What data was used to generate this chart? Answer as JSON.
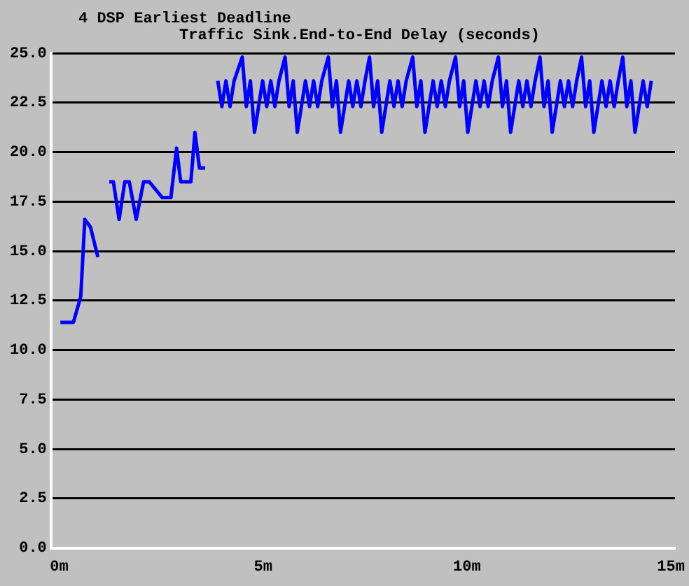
{
  "chart_data": {
    "type": "line",
    "title": "4 DSP Earliest Deadline",
    "subtitle": "Traffic Sink.End-to-End Delay (seconds)",
    "x": [
      0.03,
      0.35,
      0.53,
      0.63,
      0.77,
      0.95,
      1.1,
      1.23,
      1.33,
      1.47,
      1.61,
      1.72,
      1.89,
      2.07,
      2.21,
      2.53,
      2.74,
      2.88,
      2.98,
      3.23,
      3.33,
      3.44,
      3.58,
      3.75,
      3.89,
      3.99,
      4.09,
      4.19,
      4.29,
      4.49,
      4.59,
      4.69,
      4.79,
      4.89,
      4.99,
      5.09,
      5.19,
      5.29,
      5.39,
      5.54,
      5.64,
      5.74,
      5.84,
      5.94,
      6.04,
      6.14,
      6.24,
      6.34,
      6.44,
      6.6,
      6.7,
      6.8,
      6.9,
      7.0,
      7.1,
      7.2,
      7.3,
      7.4,
      7.5,
      7.61,
      7.71,
      7.81,
      7.91,
      8.01,
      8.11,
      8.21,
      8.31,
      8.41,
      8.51,
      8.67,
      8.77,
      8.87,
      8.97,
      9.07,
      9.17,
      9.27,
      9.37,
      9.47,
      9.57,
      9.72,
      9.82,
      9.92,
      10.02,
      10.12,
      10.22,
      10.32,
      10.42,
      10.52,
      10.62,
      10.77,
      10.87,
      10.97,
      11.07,
      11.17,
      11.27,
      11.37,
      11.47,
      11.57,
      11.67,
      11.79,
      11.89,
      11.99,
      12.09,
      12.19,
      12.29,
      12.39,
      12.49,
      12.59,
      12.69,
      12.81,
      12.91,
      13.01,
      13.11,
      13.21,
      13.31,
      13.41,
      13.51,
      13.61,
      13.71,
      13.82,
      13.92,
      14.02,
      14.12,
      14.22,
      14.32,
      14.42,
      14.52
    ],
    "series": [
      {
        "color": "#0000ff",
        "values": [
          11.4,
          11.4,
          12.7,
          16.6,
          16.2,
          14.7,
          null,
          18.5,
          18.5,
          16.6,
          18.5,
          18.5,
          16.6,
          18.5,
          18.5,
          17.7,
          17.7,
          20.2,
          18.5,
          18.5,
          21.0,
          19.2,
          19.2,
          null,
          23.6,
          22.3,
          23.6,
          22.3,
          23.6,
          24.8,
          22.3,
          23.6,
          21.0,
          22.3,
          23.6,
          22.3,
          23.6,
          22.3,
          23.6,
          24.8,
          22.3,
          23.6,
          21.0,
          22.3,
          23.6,
          22.3,
          23.6,
          22.3,
          23.6,
          24.8,
          22.3,
          23.6,
          21.0,
          22.3,
          23.6,
          22.3,
          23.6,
          22.3,
          23.6,
          24.8,
          22.3,
          23.6,
          21.0,
          22.3,
          23.6,
          22.3,
          23.6,
          22.3,
          23.6,
          24.8,
          22.3,
          23.6,
          21.0,
          22.3,
          23.6,
          22.3,
          23.6,
          22.3,
          23.6,
          24.8,
          22.3,
          23.6,
          21.0,
          22.3,
          23.6,
          22.3,
          23.6,
          22.3,
          23.6,
          24.8,
          22.3,
          23.6,
          21.0,
          22.3,
          23.6,
          22.3,
          23.6,
          22.3,
          23.6,
          24.8,
          22.3,
          23.6,
          21.0,
          22.3,
          23.6,
          22.3,
          23.6,
          22.3,
          23.6,
          24.8,
          22.3,
          23.6,
          21.0,
          22.3,
          23.6,
          22.3,
          23.6,
          22.3,
          23.6,
          24.8,
          22.3,
          23.6,
          21.0,
          22.3,
          23.6,
          22.3,
          23.6
        ]
      }
    ],
    "xlim": [
      -0.2,
      15.1
    ],
    "xticks": [
      {
        "value": 0,
        "label": "0m"
      },
      {
        "value": 5,
        "label": "5m"
      },
      {
        "value": 10,
        "label": "10m"
      },
      {
        "value": 15,
        "label": "15m"
      }
    ],
    "ylim": [
      0,
      25
    ],
    "yticks": [
      {
        "value": 0,
        "label": "0.0"
      },
      {
        "value": 2.5,
        "label": "2.5"
      },
      {
        "value": 5,
        "label": "5.0"
      },
      {
        "value": 7.5,
        "label": "7.5"
      },
      {
        "value": 10,
        "label": "10.0"
      },
      {
        "value": 12.5,
        "label": "12.5"
      },
      {
        "value": 15,
        "label": "15.0"
      },
      {
        "value": 17.5,
        "label": "17.5"
      },
      {
        "value": 20,
        "label": "20.0"
      },
      {
        "value": 22.5,
        "label": "22.5"
      },
      {
        "value": 25,
        "label": "25.0"
      }
    ],
    "grid": "y",
    "legend": false,
    "marker": "none",
    "line_style": "solid"
  }
}
